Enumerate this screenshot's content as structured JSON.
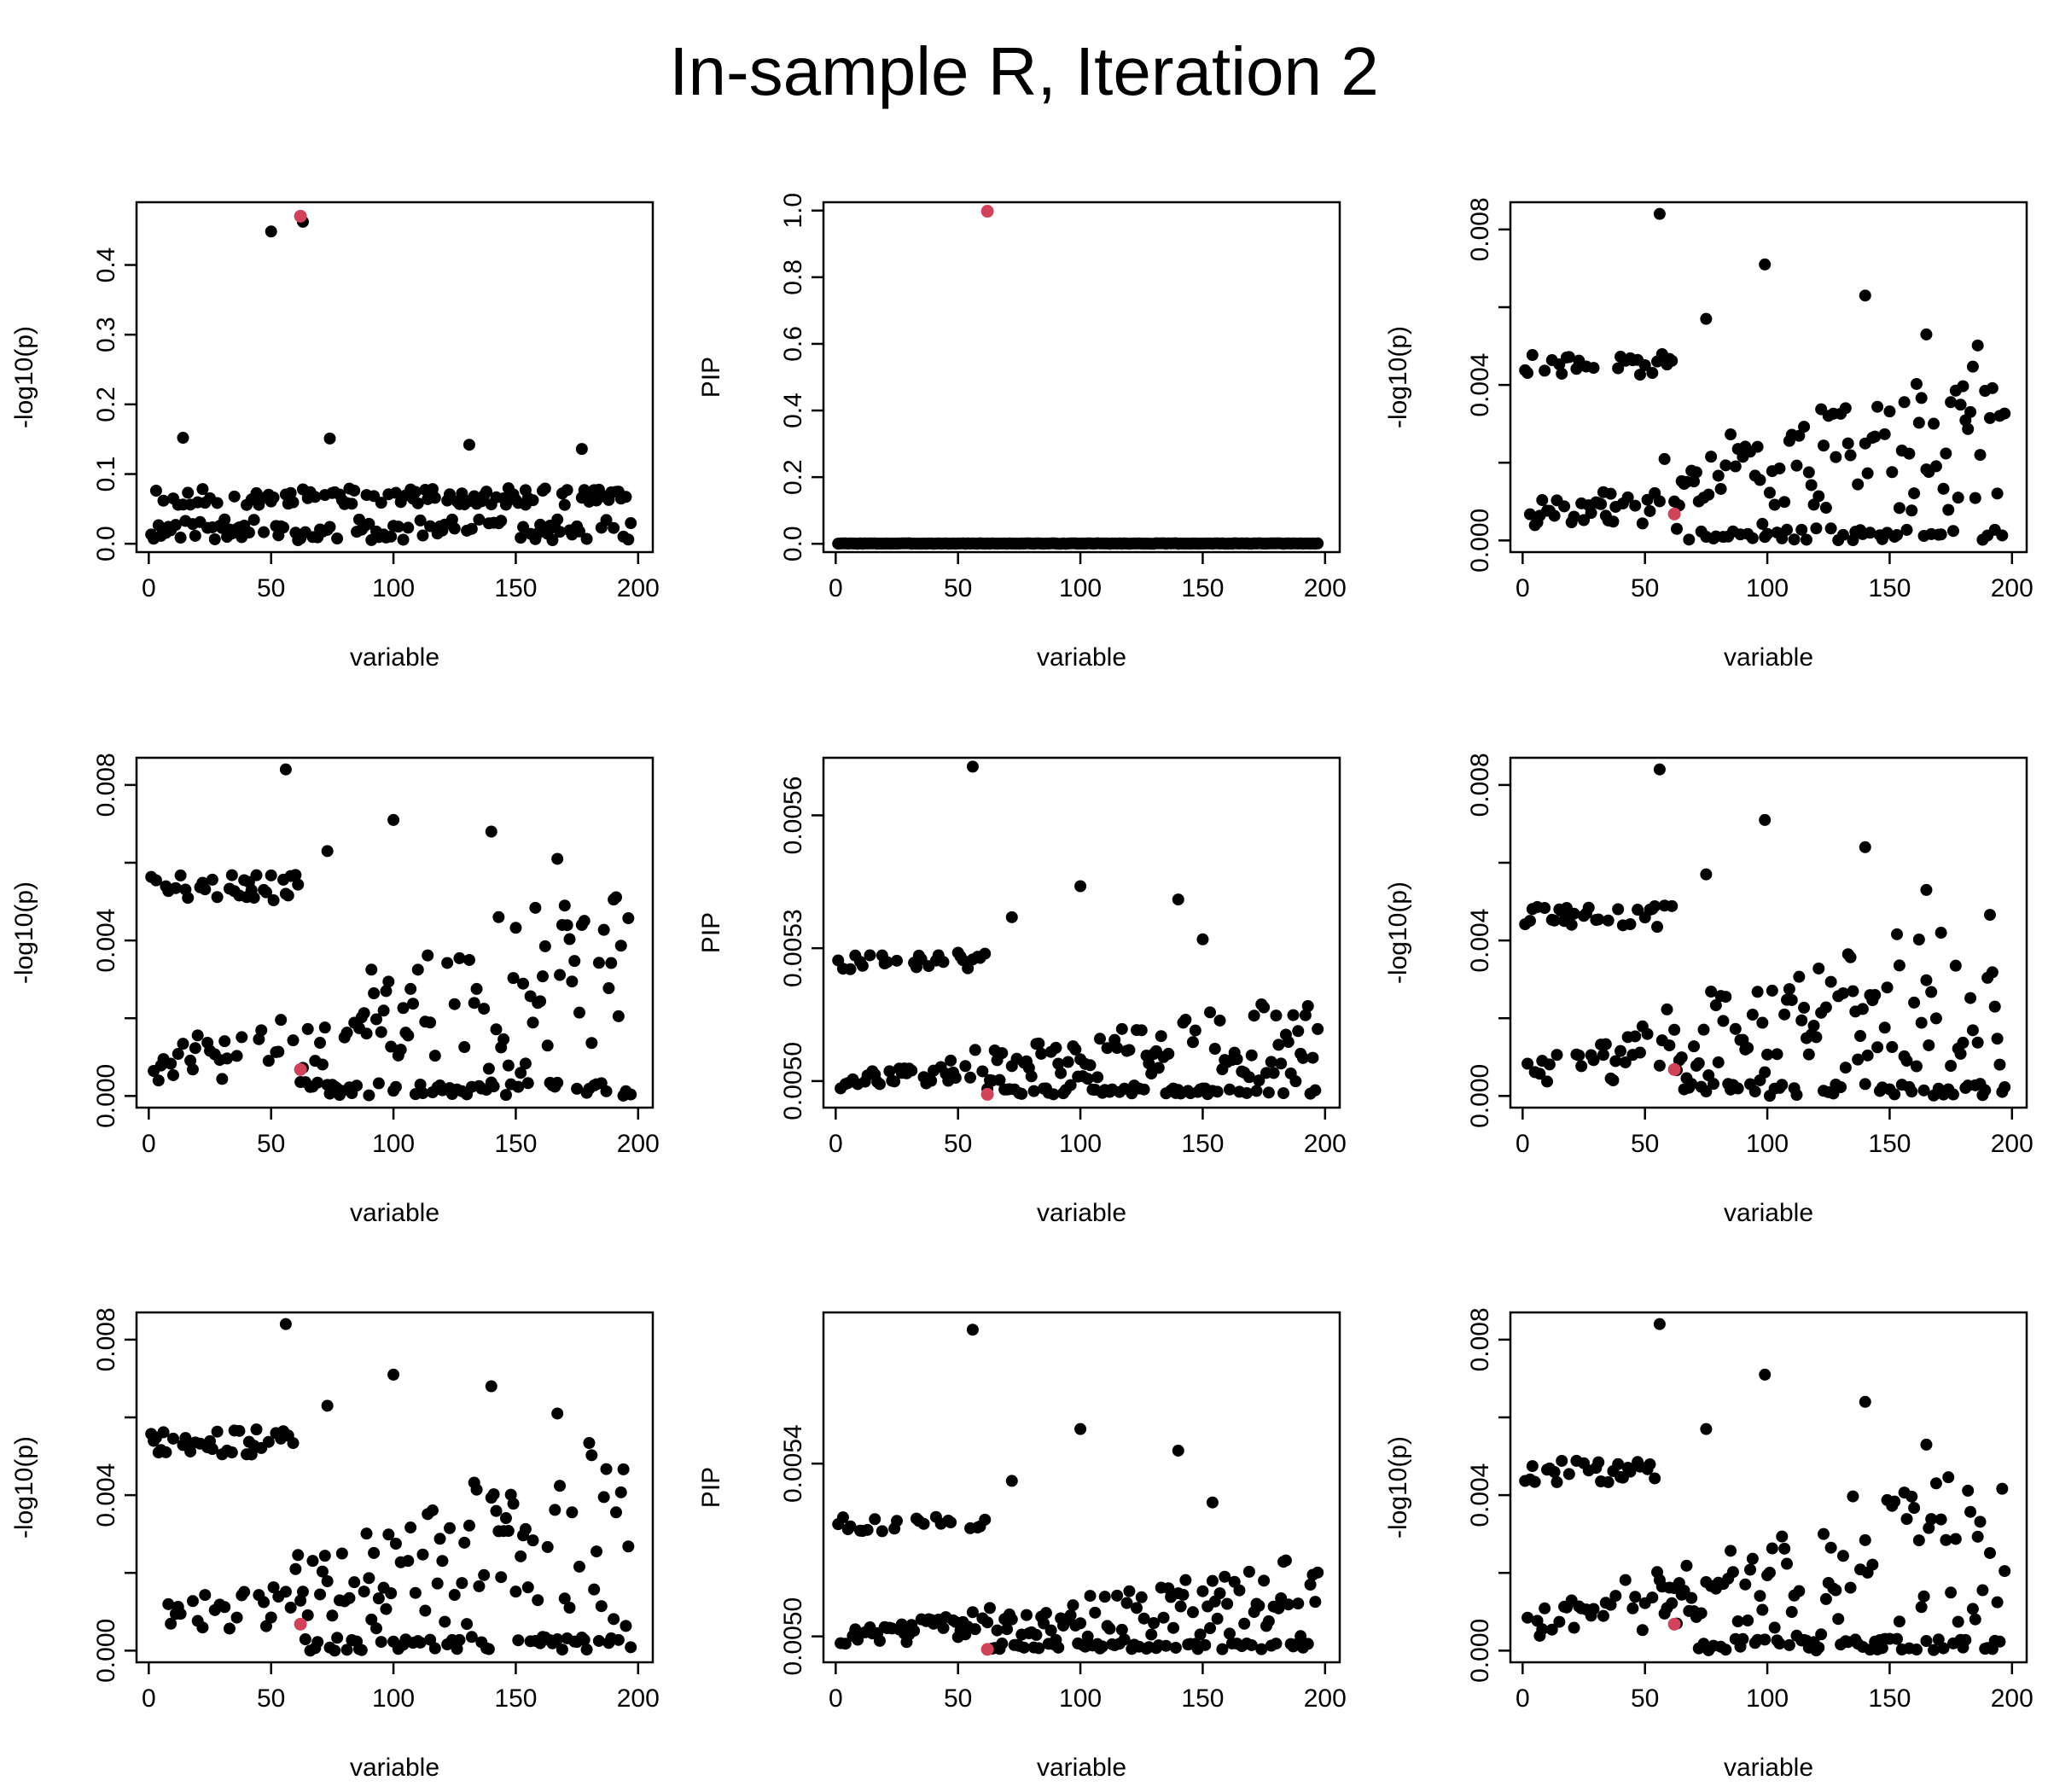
{
  "figure": {
    "title": "In-sample R, Iteration 2",
    "colors": {
      "point": "#000000",
      "highlight": "#d1435b",
      "axis": "#000000"
    }
  },
  "chart_data": [
    {
      "type": "scatter",
      "xlabel": "variable",
      "ylabel": "-log10(p)",
      "xlim": [
        -5,
        206
      ],
      "ylim": [
        -0.012,
        0.49
      ],
      "xticks": [
        0,
        50,
        100,
        150,
        200
      ],
      "xtick_labels": [
        "0",
        "50",
        "100",
        "150",
        "200"
      ],
      "yticks": [
        0,
        0.1,
        0.2,
        0.3,
        0.4
      ],
      "ytick_labels": [
        "0.0",
        "0.1",
        "0.2",
        "0.3",
        "0.4"
      ],
      "gen": {
        "kind": "pval1",
        "seed": 11
      },
      "highlight": {
        "x": 62,
        "y": 0.47
      },
      "extra_points": [
        [
          50,
          0.448
        ],
        [
          63,
          0.462
        ],
        [
          14,
          0.152
        ],
        [
          74,
          0.151
        ],
        [
          131,
          0.142
        ],
        [
          177,
          0.136
        ],
        [
          154,
          0.056
        ]
      ]
    },
    {
      "type": "scatter",
      "xlabel": "variable",
      "ylabel": "PIP",
      "xlim": [
        -5,
        206
      ],
      "ylim": [
        -0.025,
        1.025
      ],
      "xticks": [
        0,
        50,
        100,
        150,
        200
      ],
      "xtick_labels": [
        "0",
        "50",
        "100",
        "150",
        "200"
      ],
      "yticks": [
        0,
        0.2,
        0.4,
        0.6,
        0.8,
        1.0
      ],
      "ytick_labels": [
        "0.0",
        "0.2",
        "0.4",
        "0.6",
        "0.8",
        "1.0"
      ],
      "gen": {
        "kind": "flat",
        "seed": 3
      },
      "highlight": {
        "x": 62,
        "y": 0.998
      },
      "extra_points": []
    },
    {
      "type": "scatter",
      "xlabel": "variable",
      "ylabel": "-log10(p)",
      "xlim": [
        -5,
        206
      ],
      "ylim": [
        -0.0003,
        0.0087
      ],
      "xticks": [
        0,
        50,
        100,
        150,
        200
      ],
      "xtick_labels": [
        "0",
        "50",
        "100",
        "150",
        "200"
      ],
      "yticks": [
        0,
        0.002,
        0.004,
        0.006,
        0.008
      ],
      "ytick_labels": [
        "0.000",
        "",
        "0.004",
        "",
        "0.008"
      ],
      "gen": {
        "kind": "cloud",
        "seed": 5,
        "lo": 0.0,
        "hi": 0.0052,
        "band": 0.0048
      },
      "highlight": {
        "x": 62,
        "y": 0.00068
      },
      "extra_points": [
        [
          56,
          0.0084
        ],
        [
          99,
          0.0071
        ],
        [
          140,
          0.0063
        ],
        [
          75,
          0.0057
        ],
        [
          165,
          0.0053
        ]
      ]
    },
    {
      "type": "scatter",
      "xlabel": "variable",
      "ylabel": "-log10(p)",
      "xlim": [
        -5,
        206
      ],
      "ylim": [
        -0.0003,
        0.0087
      ],
      "xticks": [
        0,
        50,
        100,
        150,
        200
      ],
      "xtick_labels": [
        "0",
        "50",
        "100",
        "150",
        "200"
      ],
      "yticks": [
        0,
        0.002,
        0.004,
        0.006,
        0.008
      ],
      "ytick_labels": [
        "0.000",
        "",
        "0.004",
        "",
        "0.008"
      ],
      "gen": {
        "kind": "cloud",
        "seed": 9,
        "lo": 0.0,
        "hi": 0.006,
        "band": 0.0057
      },
      "highlight": {
        "x": 62,
        "y": 0.00068
      },
      "extra_points": [
        [
          56,
          0.0084
        ],
        [
          100,
          0.0071
        ],
        [
          140,
          0.0068
        ],
        [
          73,
          0.0063
        ],
        [
          167,
          0.0061
        ]
      ]
    },
    {
      "type": "scatter",
      "xlabel": "variable",
      "ylabel": "PIP",
      "xlim": [
        -5,
        206
      ],
      "ylim": [
        0.00494,
        0.00573
      ],
      "xticks": [
        0,
        50,
        100,
        150,
        200
      ],
      "xtick_labels": [
        "0",
        "50",
        "100",
        "150",
        "200"
      ],
      "yticks": [
        0.005,
        0.0053,
        0.0056
      ],
      "ytick_labels": [
        "0.0050",
        "0.0053",
        "0.0056"
      ],
      "gen": {
        "kind": "cloud",
        "seed": 13,
        "lo": 0.00497,
        "hi": 0.0052,
        "band": 0.00529
      },
      "highlight": {
        "x": 62,
        "y": 0.00497
      },
      "extra_points": [
        [
          56,
          0.00571
        ],
        [
          100,
          0.00544
        ],
        [
          140,
          0.00541
        ],
        [
          72,
          0.00537
        ],
        [
          150,
          0.00532
        ]
      ]
    },
    {
      "type": "scatter",
      "xlabel": "variable",
      "ylabel": "-log10(p)",
      "xlim": [
        -5,
        206
      ],
      "ylim": [
        -0.0003,
        0.0087
      ],
      "xticks": [
        0,
        50,
        100,
        150,
        200
      ],
      "xtick_labels": [
        "0",
        "50",
        "100",
        "150",
        "200"
      ],
      "yticks": [
        0,
        0.002,
        0.004,
        0.006,
        0.008
      ],
      "ytick_labels": [
        "0.000",
        "",
        "0.004",
        "",
        "0.008"
      ],
      "gen": {
        "kind": "cloud",
        "seed": 17,
        "lo": 0.0,
        "hi": 0.0052,
        "band": 0.0049
      },
      "highlight": {
        "x": 62,
        "y": 0.00068
      },
      "extra_points": [
        [
          56,
          0.0084
        ],
        [
          99,
          0.0071
        ],
        [
          140,
          0.0064
        ],
        [
          75,
          0.0057
        ],
        [
          165,
          0.0053
        ]
      ]
    },
    {
      "type": "scatter",
      "xlabel": "variable",
      "ylabel": "-log10(p)",
      "xlim": [
        -5,
        206
      ],
      "ylim": [
        -0.0003,
        0.0087
      ],
      "xticks": [
        0,
        50,
        100,
        150,
        200
      ],
      "xtick_labels": [
        "0",
        "50",
        "100",
        "150",
        "200"
      ],
      "yticks": [
        0,
        0.002,
        0.004,
        0.006,
        0.008
      ],
      "ytick_labels": [
        "0.000",
        "",
        "0.004",
        "",
        "0.008"
      ],
      "gen": {
        "kind": "cloud",
        "seed": 21,
        "lo": 0.0,
        "hi": 0.006,
        "band": 0.0057
      },
      "highlight": {
        "x": 62,
        "y": 0.00068
      },
      "extra_points": [
        [
          56,
          0.0084
        ],
        [
          100,
          0.0071
        ],
        [
          140,
          0.0068
        ],
        [
          73,
          0.0063
        ],
        [
          167,
          0.0061
        ]
      ]
    },
    {
      "type": "scatter",
      "xlabel": "variable",
      "ylabel": "PIP",
      "xlim": [
        -5,
        206
      ],
      "ylim": [
        0.00494,
        0.00575
      ],
      "xticks": [
        0,
        50,
        100,
        150,
        200
      ],
      "xtick_labels": [
        "0",
        "50",
        "100",
        "150",
        "200"
      ],
      "yticks": [
        0.005,
        0.0054
      ],
      "ytick_labels": [
        "0.0050",
        "0.0054"
      ],
      "gen": {
        "kind": "cloud",
        "seed": 25,
        "lo": 0.00497,
        "hi": 0.0052,
        "band": 0.00528
      },
      "highlight": {
        "x": 62,
        "y": 0.00497
      },
      "extra_points": [
        [
          56,
          0.00571
        ],
        [
          100,
          0.00548
        ],
        [
          140,
          0.00543
        ],
        [
          72,
          0.00536
        ],
        [
          154,
          0.00531
        ]
      ]
    },
    {
      "type": "scatter",
      "xlabel": "variable",
      "ylabel": "-log10(p)",
      "xlim": [
        -5,
        206
      ],
      "ylim": [
        -0.0003,
        0.0087
      ],
      "xticks": [
        0,
        50,
        100,
        150,
        200
      ],
      "xtick_labels": [
        "0",
        "50",
        "100",
        "150",
        "200"
      ],
      "yticks": [
        0,
        0.002,
        0.004,
        0.006,
        0.008
      ],
      "ytick_labels": [
        "0.000",
        "",
        "0.004",
        "",
        "0.008"
      ],
      "gen": {
        "kind": "cloud",
        "seed": 29,
        "lo": 0.0,
        "hi": 0.0052,
        "band": 0.0049
      },
      "highlight": {
        "x": 62,
        "y": 0.00068
      },
      "extra_points": [
        [
          56,
          0.0084
        ],
        [
          99,
          0.0071
        ],
        [
          140,
          0.0064
        ],
        [
          75,
          0.0057
        ],
        [
          165,
          0.0053
        ]
      ]
    }
  ]
}
